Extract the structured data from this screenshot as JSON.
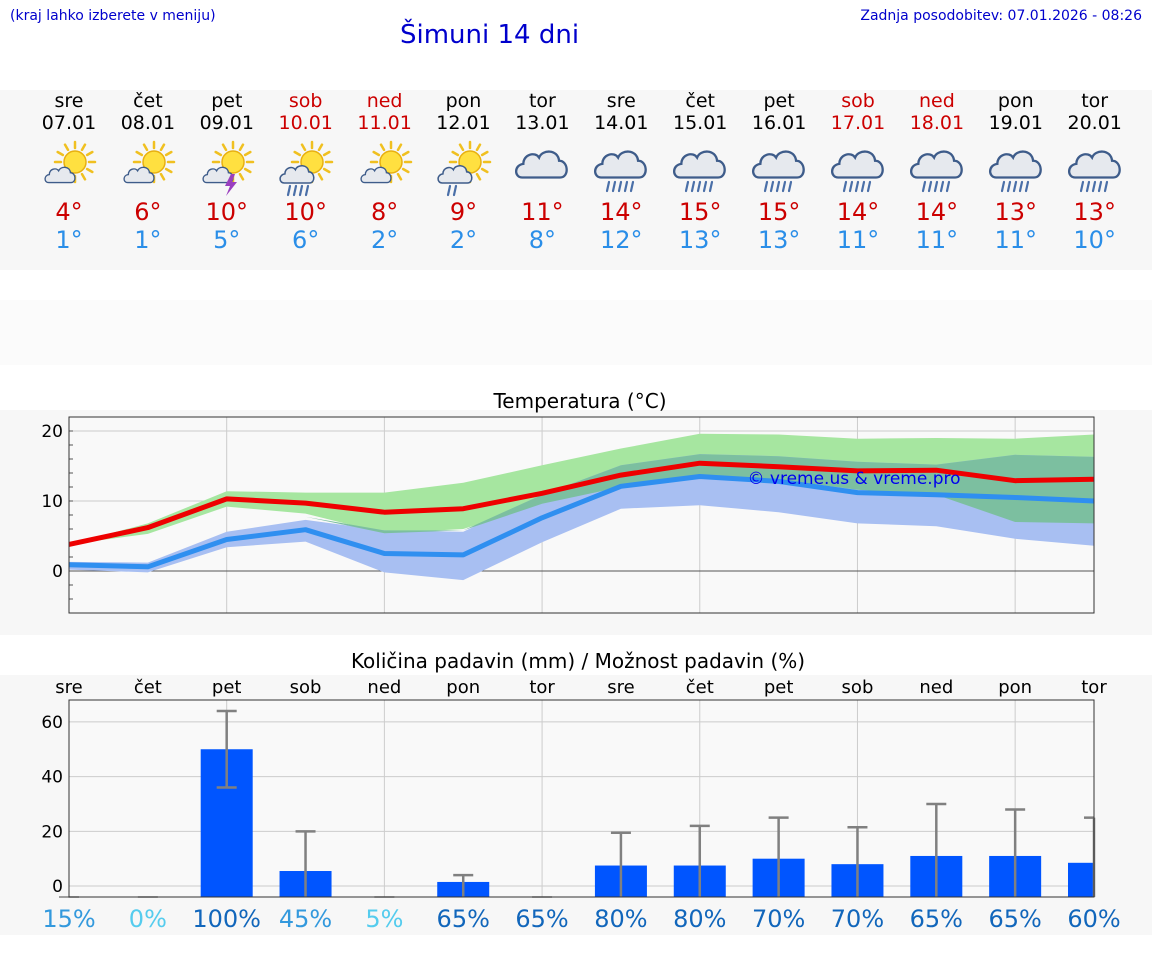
{
  "header": {
    "hint": "(kraj lahko izberete v meniju)",
    "title": "Šimuni 14 dni",
    "updated": "Zadnja posodobitev: 07.01.2026 - 08:26"
  },
  "days": [
    {
      "name": "sre",
      "date": "07.01",
      "weekend": false,
      "icon": "sun-cloud-icon",
      "tmax": "4°",
      "tmin": "1°"
    },
    {
      "name": "čet",
      "date": "08.01",
      "weekend": false,
      "icon": "sun-cloud-icon",
      "tmax": "6°",
      "tmin": "1°"
    },
    {
      "name": "pet",
      "date": "09.01",
      "weekend": false,
      "icon": "sun-thunder-icon",
      "tmax": "10°",
      "tmin": "5°"
    },
    {
      "name": "sob",
      "date": "10.01",
      "weekend": true,
      "icon": "sun-rain-icon",
      "tmax": "10°",
      "tmin": "6°"
    },
    {
      "name": "ned",
      "date": "11.01",
      "weekend": true,
      "icon": "sun-cloud-icon",
      "tmax": "8°",
      "tmin": "2°"
    },
    {
      "name": "pon",
      "date": "12.01",
      "weekend": false,
      "icon": "sun-rain-light-icon",
      "tmax": "9°",
      "tmin": "2°"
    },
    {
      "name": "tor",
      "date": "13.01",
      "weekend": false,
      "icon": "cloud-icon",
      "tmax": "11°",
      "tmin": "8°"
    },
    {
      "name": "sre",
      "date": "14.01",
      "weekend": false,
      "icon": "cloud-rain-icon",
      "tmax": "14°",
      "tmin": "12°"
    },
    {
      "name": "čet",
      "date": "15.01",
      "weekend": false,
      "icon": "cloud-rain-icon",
      "tmax": "15°",
      "tmin": "13°"
    },
    {
      "name": "pet",
      "date": "16.01",
      "weekend": false,
      "icon": "cloud-rain-icon",
      "tmax": "15°",
      "tmin": "13°"
    },
    {
      "name": "sob",
      "date": "17.01",
      "weekend": true,
      "icon": "cloud-rain-icon",
      "tmax": "14°",
      "tmin": "11°"
    },
    {
      "name": "ned",
      "date": "18.01",
      "weekend": true,
      "icon": "cloud-rain-icon",
      "tmax": "14°",
      "tmin": "11°"
    },
    {
      "name": "pon",
      "date": "19.01",
      "weekend": false,
      "icon": "cloud-rain-icon",
      "tmax": "13°",
      "tmin": "11°"
    },
    {
      "name": "tor",
      "date": "20.01",
      "weekend": false,
      "icon": "cloud-rain-icon",
      "tmax": "13°",
      "tmin": "10°"
    }
  ],
  "colors": {
    "title": "#0000cc",
    "max": "#cc0000",
    "min": "#2a8ee8",
    "maxLine": "#ee0000",
    "minLine": "#2f8ff0",
    "maxBand": "#a6e6a0",
    "minBand": "#a8bff2",
    "overlap": "#7cbfa0",
    "bar": "#0055ff",
    "err": "#808080"
  },
  "chart_data": [
    {
      "type": "line",
      "title": "Temperatura (°C)",
      "watermark": "© vreme.us & vreme.pro",
      "ylim": [
        -6,
        22
      ],
      "yticks": [
        0,
        10,
        20
      ],
      "x": [
        0,
        1,
        2,
        3,
        4,
        5,
        6,
        7,
        8,
        9,
        10,
        11,
        12,
        13
      ],
      "series": [
        {
          "name": "max",
          "values": [
            3.8,
            6.2,
            10.3,
            9.7,
            8.4,
            8.9,
            11.1,
            13.7,
            15.4,
            14.9,
            14.3,
            14.4,
            12.9,
            13.1
          ],
          "band_low": [
            3.8,
            5.3,
            9.2,
            8.2,
            5.4,
            6.0,
            9.6,
            12.0,
            13.6,
            13.1,
            11.6,
            10.9,
            7.0,
            6.8
          ],
          "band_high": [
            3.8,
            6.8,
            11.4,
            11.2,
            11.2,
            12.6,
            15.1,
            17.5,
            19.6,
            19.5,
            18.9,
            19.0,
            18.9,
            19.5
          ]
        },
        {
          "name": "min",
          "values": [
            0.9,
            0.6,
            4.5,
            5.9,
            2.5,
            2.3,
            7.6,
            12.1,
            13.5,
            12.8,
            11.2,
            10.9,
            10.5,
            10.0
          ],
          "band_low": [
            0.2,
            -0.2,
            3.4,
            4.2,
            -0.2,
            -1.3,
            4.1,
            8.9,
            9.4,
            8.4,
            6.8,
            6.4,
            4.6,
            3.6
          ],
          "band_high": [
            1.3,
            1.2,
            5.6,
            7.3,
            5.8,
            5.6,
            10.9,
            15.1,
            16.7,
            16.4,
            15.6,
            15.2,
            16.6,
            16.3
          ]
        }
      ]
    },
    {
      "type": "bar",
      "title": "Količina padavin (mm) / Možnost padavin (%)",
      "categories": [
        "sre",
        "čet",
        "pet",
        "sob",
        "ned",
        "pon",
        "tor",
        "sre",
        "čet",
        "pet",
        "sob",
        "ned",
        "pon",
        "tor"
      ],
      "values": [
        0,
        0,
        50,
        5.5,
        0,
        1.5,
        0,
        7.5,
        7.5,
        10,
        8,
        11,
        11,
        8.5
      ],
      "err_high": [
        0,
        0,
        64,
        20,
        0,
        4,
        0,
        19.5,
        22,
        25,
        21.5,
        30,
        28,
        25
      ],
      "err_low": [
        0,
        0,
        36,
        0,
        0,
        0,
        0,
        0,
        0,
        0,
        0,
        0,
        0,
        0
      ],
      "probability": [
        "15%",
        "0%",
        "100%",
        "45%",
        "5%",
        "65%",
        "65%",
        "80%",
        "80%",
        "70%",
        "70%",
        "65%",
        "65%",
        "60%"
      ],
      "prob_colors": [
        "#3399dd",
        "#55ccee",
        "#1166bb",
        "#3399dd",
        "#55ccee",
        "#1166bb",
        "#1166bb",
        "#1166bb",
        "#1166bb",
        "#1166bb",
        "#1166bb",
        "#1166bb",
        "#1166bb",
        "#1166bb"
      ],
      "ylim": [
        -4,
        68
      ],
      "yticks": [
        0,
        20,
        40,
        60
      ]
    }
  ]
}
